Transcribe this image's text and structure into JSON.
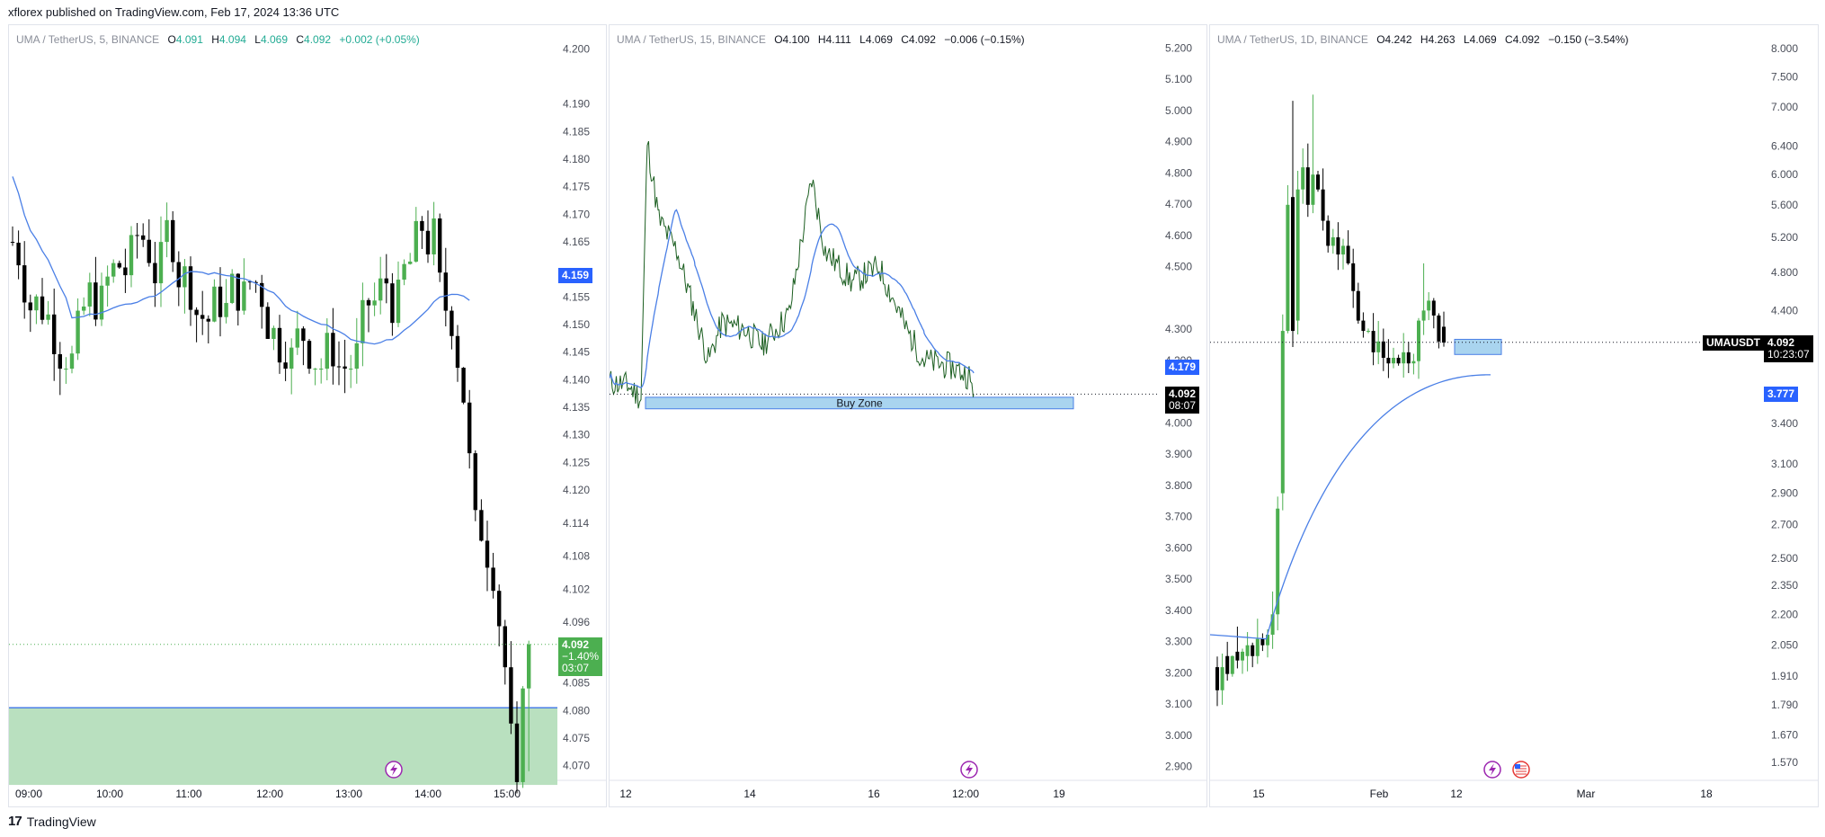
{
  "header": {
    "text": "xflorex published on TradingView.com, Feb 17, 2024 13:36 UTC"
  },
  "footer": {
    "brand": "TradingView",
    "logo_glyph": "17"
  },
  "colors": {
    "up": "#4caf50",
    "down": "#000000",
    "ma": "#4a7fe6",
    "zone_fill": "#b9e0bf",
    "buy_zone_fill": "#a9d4ef",
    "badge_green": "#4caf50",
    "badge_blue": "#2962ff",
    "badge_black": "#000000",
    "icon_purple": "#9c27b0"
  },
  "chart_data": [
    {
      "type": "candlestick",
      "legend": {
        "symbol": "UMA / TetherUS, 5, BINANCE",
        "o": "4.091",
        "h": "4.094",
        "l": "4.069",
        "c": "4.092",
        "change": "+0.002 (+0.05%)"
      },
      "y_ticks": [
        "4.200",
        "4.190",
        "4.185",
        "4.180",
        "4.175",
        "4.170",
        "4.165",
        "4.155",
        "4.150",
        "4.145",
        "4.140",
        "4.135",
        "4.130",
        "4.125",
        "4.120",
        "4.114",
        "4.108",
        "4.102",
        "4.096",
        "4.085",
        "4.080",
        "4.075",
        "4.070"
      ],
      "x_ticks": [
        "09:00",
        "10:00",
        "11:00",
        "12:00",
        "13:00",
        "14:00",
        "15:00"
      ],
      "ylim": [
        4.067,
        4.203
      ],
      "ma_value": "4.159",
      "price_badge": {
        "price": "4.092",
        "change": "−1.40%",
        "timer": "03:07"
      },
      "zone": {
        "from": 4.0665,
        "to": 4.0805
      },
      "icons": [
        "lightning-icon"
      ]
    },
    {
      "type": "line",
      "legend": {
        "symbol": "UMA / TetherUS, 15, BINANCE",
        "o": "4.100",
        "h": "4.111",
        "l": "4.069",
        "c": "4.092",
        "change": "−0.006 (−0.15%)"
      },
      "y_ticks": [
        "5.200",
        "5.100",
        "5.000",
        "4.900",
        "4.800",
        "4.700",
        "4.600",
        "4.500",
        "4.300",
        "4.200",
        "4.000",
        "3.900",
        "3.800",
        "3.700",
        "3.600",
        "3.500",
        "3.400",
        "3.300",
        "3.200",
        "3.100",
        "3.000",
        "2.900"
      ],
      "x_ticks": [
        "12",
        "14",
        "16",
        "12:00",
        "19"
      ],
      "ylim": [
        2.85,
        5.25
      ],
      "ma_value": "4.179",
      "price_badge": {
        "price": "4.092",
        "timer": "08:07"
      },
      "buy_zone": {
        "label": "Buy Zone",
        "from": 4.045,
        "to": 4.082
      },
      "icons": [
        "lightning-icon"
      ]
    },
    {
      "type": "candlestick",
      "scale": "log",
      "legend": {
        "symbol": "UMA / TetherUS, 1D, BINANCE",
        "o": "4.242",
        "h": "4.263",
        "l": "4.069",
        "c": "4.092",
        "change": "−0.150 (−3.54%)"
      },
      "y_ticks": [
        "8.000",
        "7.500",
        "7.000",
        "6.400",
        "6.000",
        "5.600",
        "5.200",
        "4.800",
        "4.400",
        "3.400",
        "3.100",
        "2.900",
        "2.700",
        "2.500",
        "2.350",
        "2.200",
        "2.050",
        "1.910",
        "1.790",
        "1.670",
        "1.570"
      ],
      "x_ticks": [
        "15",
        "Feb",
        "12",
        "Mar",
        "18"
      ],
      "ylim": [
        1.5,
        8.3
      ],
      "ma_value": "3.777",
      "price_badge": {
        "symbol": "UMAUSDT",
        "price": "4.092",
        "timer": "10:23:07"
      },
      "icons": [
        "lightning-icon",
        "us-flag-icon"
      ]
    }
  ]
}
